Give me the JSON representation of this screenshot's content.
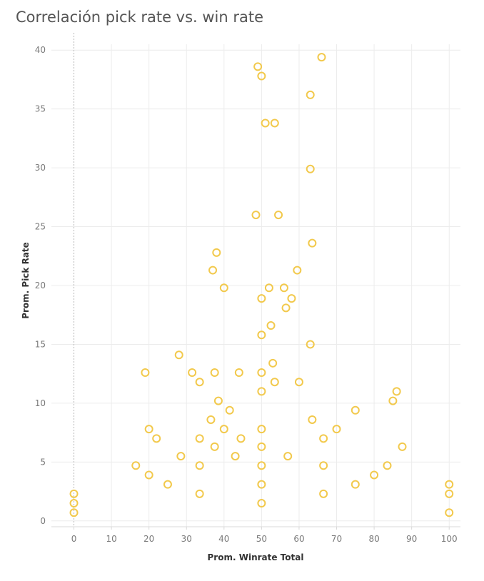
{
  "chart_data": {
    "type": "scatter",
    "title": "Correlación pick rate vs. win rate",
    "xlabel": "Prom. Winrate Total",
    "ylabel": "Prom. Pick Rate",
    "xlim": [
      -6,
      103
    ],
    "ylim": [
      -0.5,
      40.5
    ],
    "xticks": [
      0,
      10,
      20,
      30,
      40,
      50,
      60,
      70,
      80,
      90,
      100
    ],
    "yticks": [
      0,
      5,
      10,
      15,
      20,
      25,
      30,
      35,
      40
    ],
    "grid": true,
    "marker_color": "#f2c94c",
    "points": [
      [
        49,
        38.6
      ],
      [
        66,
        39.4
      ],
      [
        50,
        37.8
      ],
      [
        63,
        36.2
      ],
      [
        51,
        33.8
      ],
      [
        53.5,
        33.8
      ],
      [
        63,
        29.9
      ],
      [
        48.5,
        26
      ],
      [
        54.5,
        26
      ],
      [
        63.5,
        23.6
      ],
      [
        38,
        22.8
      ],
      [
        37,
        21.3
      ],
      [
        59.5,
        21.3
      ],
      [
        40,
        19.8
      ],
      [
        52,
        19.8
      ],
      [
        56,
        19.8
      ],
      [
        50,
        18.9
      ],
      [
        58,
        18.9
      ],
      [
        56.5,
        18.1
      ],
      [
        52.5,
        16.6
      ],
      [
        50,
        15.8
      ],
      [
        63,
        15
      ],
      [
        28,
        14.1
      ],
      [
        53,
        13.4
      ],
      [
        19,
        12.6
      ],
      [
        31.5,
        12.6
      ],
      [
        37.5,
        12.6
      ],
      [
        44,
        12.6
      ],
      [
        50,
        12.6
      ],
      [
        33.5,
        11.8
      ],
      [
        53.5,
        11.8
      ],
      [
        60,
        11.8
      ],
      [
        50,
        11
      ],
      [
        86,
        11
      ],
      [
        38.5,
        10.2
      ],
      [
        85,
        10.2
      ],
      [
        41.5,
        9.4
      ],
      [
        75,
        9.4
      ],
      [
        36.5,
        8.6
      ],
      [
        63.5,
        8.6
      ],
      [
        20,
        7.8
      ],
      [
        40,
        7.8
      ],
      [
        50,
        7.8
      ],
      [
        70,
        7.8
      ],
      [
        22,
        7
      ],
      [
        33.5,
        7
      ],
      [
        44.5,
        7
      ],
      [
        66.5,
        7
      ],
      [
        37.5,
        6.3
      ],
      [
        50,
        6.3
      ],
      [
        87.5,
        6.3
      ],
      [
        28.5,
        5.5
      ],
      [
        43,
        5.5
      ],
      [
        57,
        5.5
      ],
      [
        16.5,
        4.7
      ],
      [
        33.5,
        4.7
      ],
      [
        50,
        4.7
      ],
      [
        66.5,
        4.7
      ],
      [
        83.5,
        4.7
      ],
      [
        20,
        3.9
      ],
      [
        80,
        3.9
      ],
      [
        25,
        3.1
      ],
      [
        50,
        3.1
      ],
      [
        75,
        3.1
      ],
      [
        100,
        3.1
      ],
      [
        0,
        2.3
      ],
      [
        33.5,
        2.3
      ],
      [
        66.5,
        2.3
      ],
      [
        100,
        2.3
      ],
      [
        0,
        1.5
      ],
      [
        50,
        1.5
      ],
      [
        0,
        0.7
      ],
      [
        100,
        0.7
      ]
    ]
  }
}
